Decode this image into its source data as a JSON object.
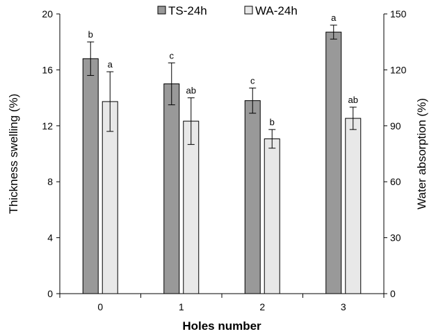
{
  "chart_data": {
    "type": "bar",
    "title": "",
    "xlabel": "Holes number",
    "ylabel": "Thickness swelling (%)",
    "y2label": "Water absorption (%)",
    "categories": [
      "0",
      "1",
      "2",
      "3"
    ],
    "ylim": [
      0,
      20
    ],
    "y2lim": [
      0,
      150
    ],
    "yticks": [
      "0",
      "4",
      "8",
      "12",
      "16",
      "20"
    ],
    "y2ticks": [
      "0",
      "30",
      "60",
      "90",
      "120",
      "150"
    ],
    "legend_position": "top",
    "grid": false,
    "series": [
      {
        "name": "TS-24h",
        "axis": "left",
        "color": "#999999",
        "values": [
          16.8,
          15.0,
          13.8,
          18.7
        ],
        "errors": [
          1.2,
          1.5,
          0.9,
          0.5
        ],
        "labels": [
          "b",
          "c",
          "c",
          "a"
        ]
      },
      {
        "name": "WA-24h",
        "axis": "right",
        "color": "#e8e8e8",
        "values": [
          103,
          92.5,
          83,
          94
        ],
        "errors": [
          16,
          12.5,
          5,
          6
        ],
        "labels": [
          "a",
          "ab",
          "b",
          "ab"
        ]
      }
    ]
  }
}
